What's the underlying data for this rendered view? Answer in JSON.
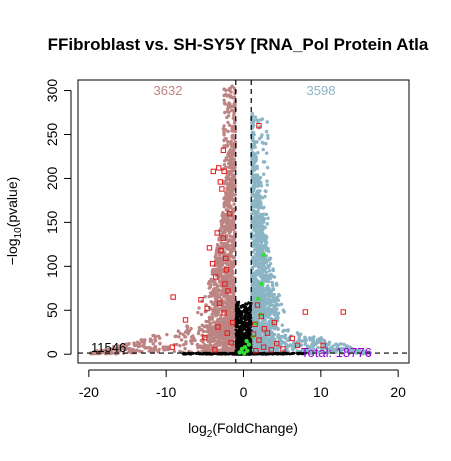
{
  "chart_data": {
    "type": "scatter",
    "title": "FFibroblast vs. SH-SY5Y [RNA_Pol Protein Atla",
    "xlabel_main": "log",
    "xlabel_sub": "2",
    "xlabel_rest": "(FoldChange)",
    "ylabel_main": "−log",
    "ylabel_sub": "10",
    "ylabel_rest": "(pvalue)",
    "xlim": [
      -21.4,
      21.4
    ],
    "ylim": [
      -10,
      312
    ],
    "x_ticks": [
      -20,
      -10,
      0,
      10,
      20
    ],
    "x_tick_labels": [
      "-20",
      "-10",
      "0",
      "10",
      "20"
    ],
    "y_ticks": [
      0,
      50,
      100,
      150,
      200,
      250,
      300
    ],
    "y_tick_labels": [
      "0",
      "50",
      "100",
      "150",
      "200",
      "250",
      "300"
    ],
    "fc_threshold": [
      -1,
      1
    ],
    "pvalue_threshold_y": 1.3,
    "annotations": {
      "down_count": "3632",
      "up_count": "3598",
      "not_significant_count": "11546",
      "total": "Total: 18776"
    },
    "colors": {
      "down": "#bc8482",
      "up": "#8bb4c4",
      "not_significant": "#000000",
      "highlight_outline": "#e41a1c",
      "highlight_green": "#33dd33",
      "total_label": "#9400d3"
    },
    "highlighted_points": [
      {
        "x": -2.6,
        "y": 232
      },
      {
        "x": -3.2,
        "y": 212
      },
      {
        "x": -2.5,
        "y": 208
      },
      {
        "x": -3.9,
        "y": 208
      },
      {
        "x": -3.0,
        "y": 196
      },
      {
        "x": -2.8,
        "y": 188
      },
      {
        "x": -1.8,
        "y": 160
      },
      {
        "x": -3.4,
        "y": 138
      },
      {
        "x": -2.6,
        "y": 132
      },
      {
        "x": -4.4,
        "y": 121
      },
      {
        "x": -2.9,
        "y": 118
      },
      {
        "x": -2.3,
        "y": 109
      },
      {
        "x": -4.0,
        "y": 103
      },
      {
        "x": -2.2,
        "y": 96
      },
      {
        "x": -3.6,
        "y": 88
      },
      {
        "x": -2.4,
        "y": 80
      },
      {
        "x": -2.0,
        "y": 72
      },
      {
        "x": -9.1,
        "y": 65
      },
      {
        "x": -5.5,
        "y": 62
      },
      {
        "x": -3.1,
        "y": 58
      },
      {
        "x": -4.7,
        "y": 52
      },
      {
        "x": -2.5,
        "y": 47
      },
      {
        "x": -7.5,
        "y": 39
      },
      {
        "x": -1.4,
        "y": 36
      },
      {
        "x": -3.3,
        "y": 31
      },
      {
        "x": -2.1,
        "y": 24
      },
      {
        "x": -5.0,
        "y": 19
      },
      {
        "x": -1.6,
        "y": 13
      },
      {
        "x": -9.2,
        "y": 8
      },
      {
        "x": -3.7,
        "y": 5
      },
      {
        "x": 1.8,
        "y": 56
      },
      {
        "x": 2.3,
        "y": 43
      },
      {
        "x": 1.5,
        "y": 34
      },
      {
        "x": 3.1,
        "y": 24
      },
      {
        "x": 2.0,
        "y": 16
      },
      {
        "x": 4.3,
        "y": 12
      },
      {
        "x": 2.6,
        "y": 8
      },
      {
        "x": 3.6,
        "y": 5
      },
      {
        "x": 8.0,
        "y": 48
      },
      {
        "x": 6.3,
        "y": 18
      },
      {
        "x": 5.1,
        "y": 6
      },
      {
        "x": 1.3,
        "y": 23
      },
      {
        "x": 7.0,
        "y": 10
      },
      {
        "x": 12.9,
        "y": 48
      },
      {
        "x": 10.3,
        "y": 10
      },
      {
        "x": 1.6,
        "y": 4
      },
      {
        "x": 2.7,
        "y": 29
      },
      {
        "x": 2.0,
        "y": 260
      },
      {
        "x": 4.0,
        "y": 36
      }
    ],
    "green_points": [
      {
        "x": -0.3,
        "y": 3
      },
      {
        "x": 0.2,
        "y": 8
      },
      {
        "x": 0.5,
        "y": 4
      },
      {
        "x": -0.5,
        "y": 2
      },
      {
        "x": 0.1,
        "y": 1
      },
      {
        "x": 0.7,
        "y": 11
      },
      {
        "x": -0.2,
        "y": 6
      },
      {
        "x": 0.4,
        "y": 15
      },
      {
        "x": 1.2,
        "y": 20
      },
      {
        "x": 1.6,
        "y": 35
      },
      {
        "x": 2.6,
        "y": 113
      },
      {
        "x": 2.3,
        "y": 80
      },
      {
        "x": 1.9,
        "y": 63
      },
      {
        "x": 2.2,
        "y": 45
      }
    ]
  }
}
